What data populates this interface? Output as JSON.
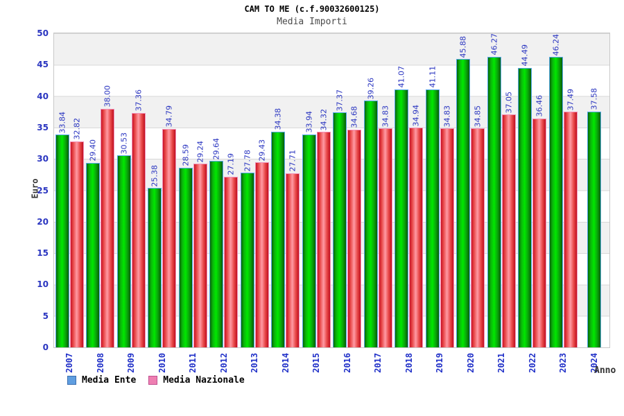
{
  "header": {
    "title": "CAM TO ME (c.f.90032600125)",
    "subtitle": "Media Importi"
  },
  "axes": {
    "y_label": "Euro",
    "x_label": "Anno"
  },
  "legend": {
    "position": "bottom-left",
    "items": [
      {
        "label": "Media Ente",
        "swatch_fill": "#5f9ee0",
        "swatch_border": "#3c6fb0"
      },
      {
        "label": "Media Nazionale",
        "swatch_fill": "#ee7fb2",
        "swatch_border": "#c05090"
      }
    ]
  },
  "colors": {
    "bar_green_main": "#00cc00",
    "bar_green_border": "#58a8ec",
    "bar_red_main": "#ee2233",
    "bar_red_border": "#f090b8",
    "value_label_blue": "#2a35c0",
    "tick_label_blue": "#2030c8",
    "band_gray": "#f1f1f1",
    "grid_line": "#d8d8d8",
    "axis_text": "#333333"
  },
  "chart_data": {
    "type": "bar",
    "title": "CAM TO ME (c.f.90032600125)",
    "subtitle": "Media Importi",
    "xlabel": "Anno",
    "ylabel": "Euro",
    "ylim": [
      0,
      50
    ],
    "ytick_step": 5,
    "grid": "horizontal gridlines with alternating gray/white bands",
    "legend_position": "bottom-left",
    "value_label_decimals": 2,
    "value_label_rotation": "vertical-bottom-up",
    "categories": [
      "2007",
      "2008",
      "2009",
      "2010",
      "2011",
      "2012",
      "2013",
      "2014",
      "2015",
      "2016",
      "2017",
      "2018",
      "2019",
      "2020",
      "2021",
      "2022",
      "2023",
      "2024"
    ],
    "series": [
      {
        "name": "Media Ente",
        "color": "green",
        "values": [
          33.84,
          29.4,
          30.53,
          25.38,
          28.59,
          29.64,
          27.78,
          34.38,
          33.94,
          37.37,
          39.26,
          41.07,
          41.11,
          45.88,
          46.27,
          44.49,
          46.24,
          37.58
        ]
      },
      {
        "name": "Media Nazionale",
        "color": "red",
        "values": [
          32.82,
          38.0,
          37.36,
          34.79,
          29.24,
          27.19,
          29.43,
          27.71,
          34.32,
          34.68,
          34.83,
          34.94,
          34.83,
          34.85,
          37.05,
          36.46,
          37.49,
          null
        ]
      }
    ]
  }
}
